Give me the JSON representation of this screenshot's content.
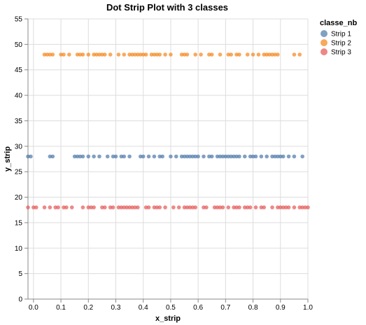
{
  "chart_data": {
    "type": "scatter",
    "title": "Dot Strip Plot with 3 classes",
    "xlabel": "x_strip",
    "ylabel": "y_strip",
    "xlim": [
      0,
      1
    ],
    "ylim": [
      0,
      55
    ],
    "x_ticks": [
      "0.0",
      "0.1",
      "0.2",
      "0.3",
      "0.4",
      "0.5",
      "0.6",
      "0.7",
      "0.8",
      "0.9",
      "1.0"
    ],
    "y_ticks": [
      "0",
      "5",
      "10",
      "15",
      "20",
      "25",
      "30",
      "35",
      "40",
      "45",
      "50",
      "55"
    ],
    "grid": true,
    "legend": {
      "title": "classe_nb",
      "position": "top-right"
    },
    "series": [
      {
        "name": "Strip 1",
        "color": "#4c78a8",
        "y": 28,
        "x": [
          -0.02,
          -0.01,
          0.06,
          0.07,
          0.15,
          0.16,
          0.17,
          0.18,
          0.2,
          0.22,
          0.24,
          0.27,
          0.29,
          0.3,
          0.32,
          0.33,
          0.35,
          0.39,
          0.4,
          0.42,
          0.44,
          0.46,
          0.47,
          0.5,
          0.52,
          0.54,
          0.55,
          0.56,
          0.57,
          0.58,
          0.59,
          0.6,
          0.62,
          0.64,
          0.65,
          0.67,
          0.68,
          0.69,
          0.7,
          0.71,
          0.72,
          0.73,
          0.74,
          0.75,
          0.77,
          0.79,
          0.8,
          0.81,
          0.83,
          0.85,
          0.87,
          0.88,
          0.89,
          0.9,
          0.91,
          0.93,
          0.95,
          0.98
        ]
      },
      {
        "name": "Strip 2",
        "color": "#f58518",
        "y": 48,
        "x": [
          0.04,
          0.05,
          0.06,
          0.07,
          0.1,
          0.11,
          0.13,
          0.16,
          0.17,
          0.18,
          0.2,
          0.22,
          0.23,
          0.24,
          0.25,
          0.26,
          0.28,
          0.31,
          0.33,
          0.35,
          0.36,
          0.37,
          0.38,
          0.39,
          0.4,
          0.41,
          0.43,
          0.44,
          0.45,
          0.46,
          0.48,
          0.5,
          0.54,
          0.55,
          0.56,
          0.59,
          0.61,
          0.64,
          0.65,
          0.68,
          0.71,
          0.72,
          0.74,
          0.75,
          0.78,
          0.8,
          0.82,
          0.84,
          0.85,
          0.86,
          0.87,
          0.88,
          0.89,
          0.95,
          0.97
        ]
      },
      {
        "name": "Strip 3",
        "color": "#e45756",
        "y": 18,
        "x": [
          -0.02,
          0.0,
          0.01,
          0.04,
          0.06,
          0.08,
          0.09,
          0.11,
          0.12,
          0.14,
          0.18,
          0.2,
          0.21,
          0.22,
          0.25,
          0.26,
          0.28,
          0.29,
          0.31,
          0.32,
          0.33,
          0.34,
          0.35,
          0.36,
          0.37,
          0.38,
          0.41,
          0.42,
          0.44,
          0.45,
          0.46,
          0.48,
          0.51,
          0.53,
          0.55,
          0.56,
          0.57,
          0.58,
          0.59,
          0.62,
          0.63,
          0.66,
          0.67,
          0.68,
          0.69,
          0.71,
          0.73,
          0.74,
          0.75,
          0.77,
          0.78,
          0.79,
          0.81,
          0.83,
          0.84,
          0.87,
          0.89,
          0.9,
          0.91,
          0.92,
          0.93,
          0.95,
          0.97,
          0.98,
          0.99,
          1.0
        ]
      }
    ]
  }
}
